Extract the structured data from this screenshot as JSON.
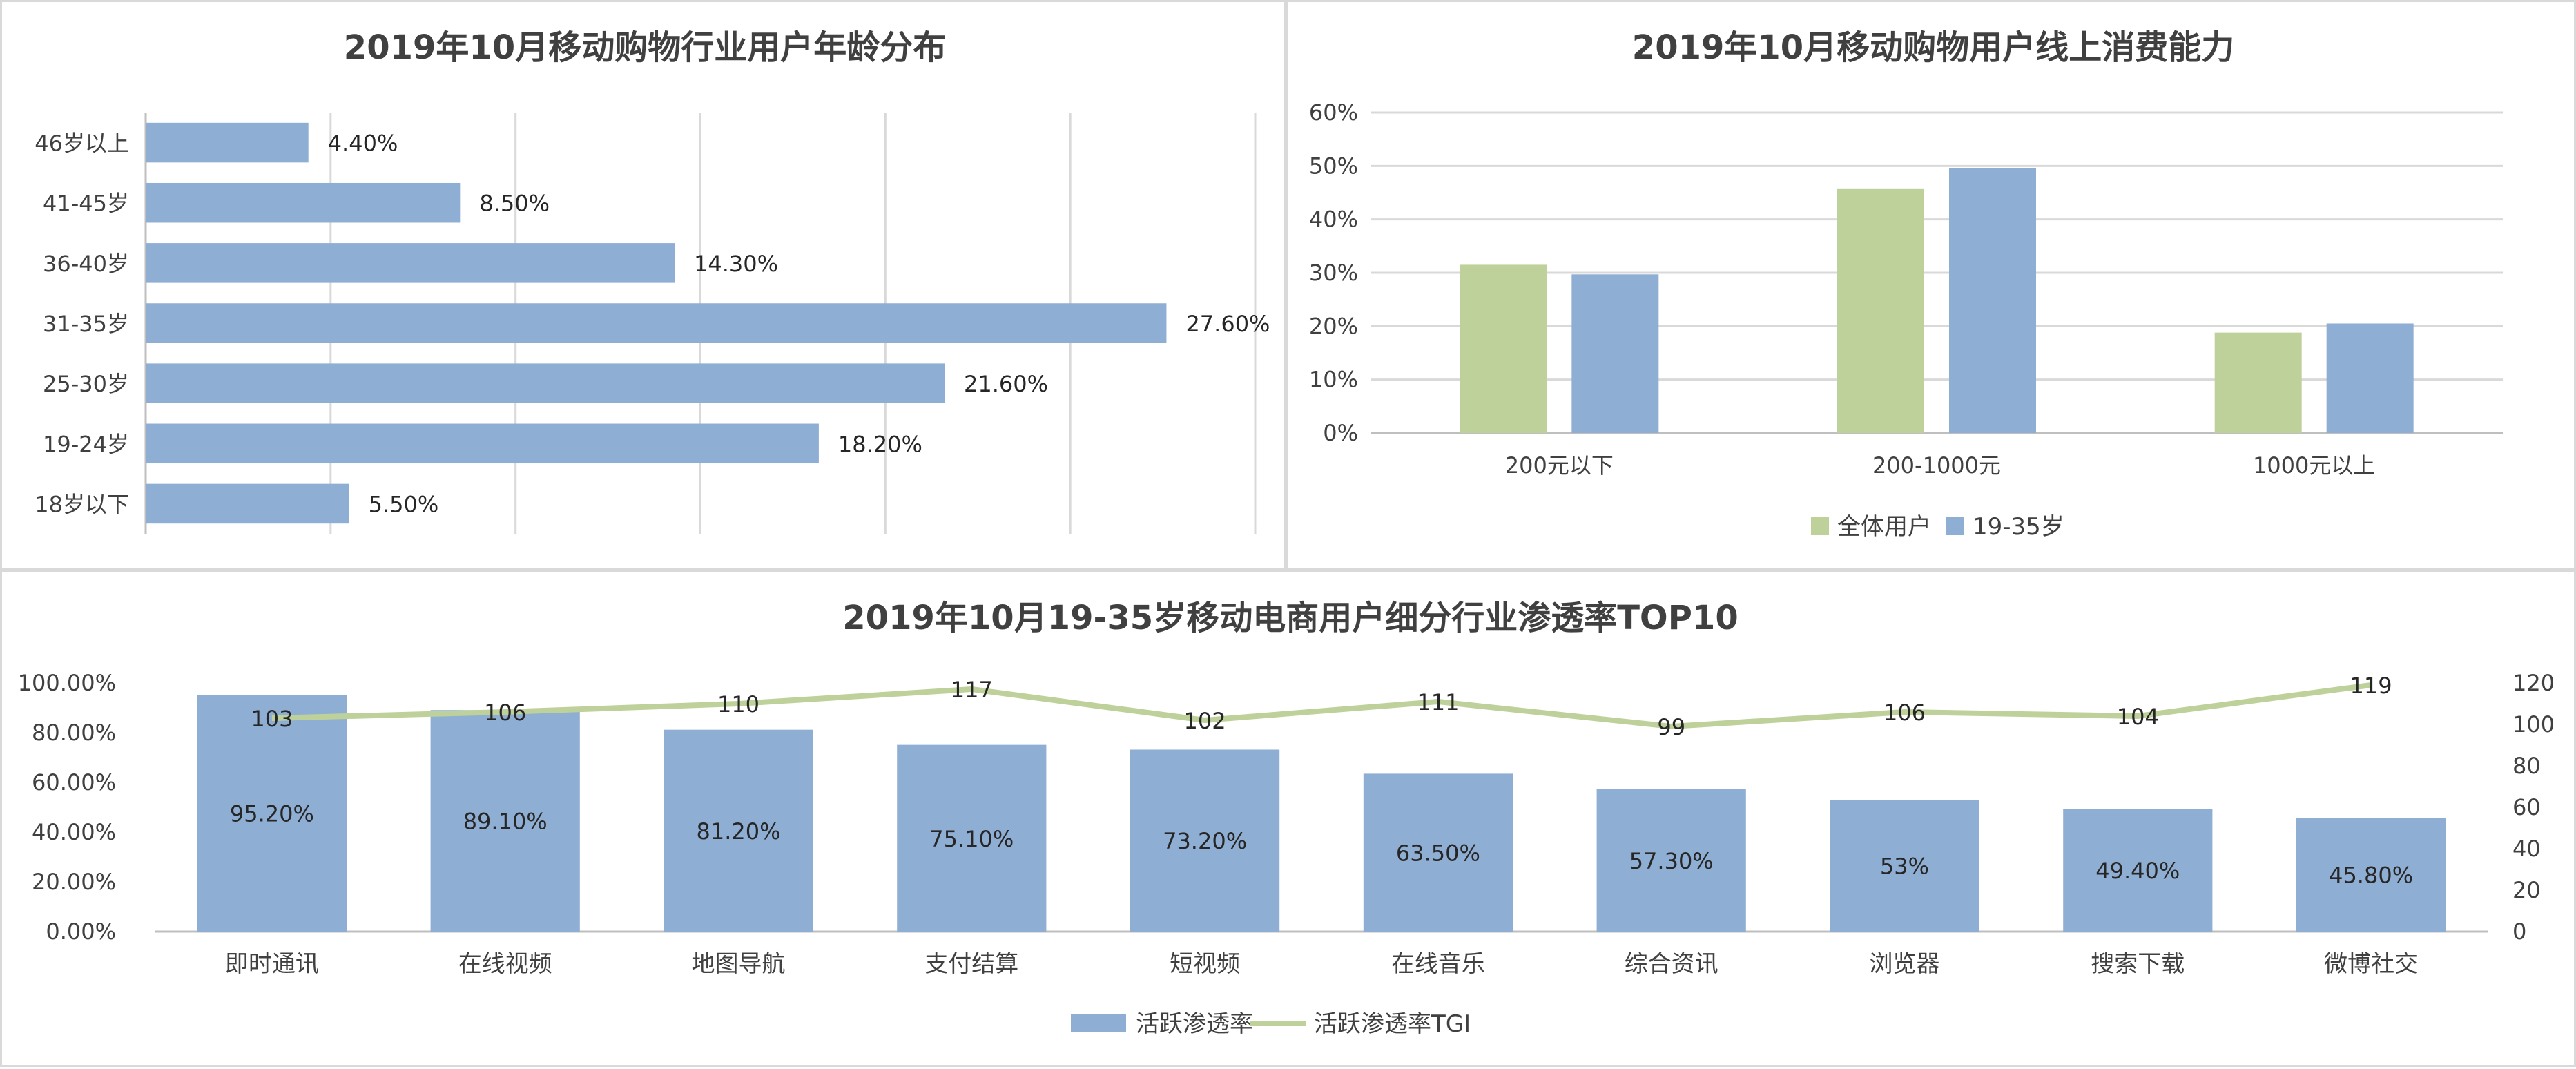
{
  "colors": {
    "blue": "#8faed3",
    "green": "#bfd19a",
    "grid": "#d9d9d9",
    "axis": "#bfbfbf",
    "text": "#404040"
  },
  "chart_data": [
    {
      "id": "age",
      "type": "bar",
      "orientation": "horizontal",
      "title": "2019年10月移动购物行业用户年龄分布",
      "categories": [
        "46岁以上",
        "41-45岁",
        "36-40岁",
        "31-35岁",
        "25-30岁",
        "19-24岁",
        "18岁以下"
      ],
      "values": [
        4.4,
        8.5,
        14.3,
        27.6,
        21.6,
        18.2,
        5.5
      ],
      "data_labels": [
        "4.40%",
        "8.50%",
        "14.30%",
        "27.60%",
        "21.60%",
        "18.20%",
        "5.50%"
      ],
      "xlim": [
        0,
        30
      ],
      "grid": "vertical",
      "legend": "none"
    },
    {
      "id": "spend",
      "type": "bar",
      "title": "2019年10月移动购物用户线上消费能力",
      "categories": [
        "200元以下",
        "200-1000元",
        "1000元以上"
      ],
      "series": [
        {
          "name": "全体用户",
          "color": "#bfd19a",
          "values": [
            31.5,
            45.8,
            18.8
          ]
        },
        {
          "name": "19-35岁",
          "color": "#8faed3",
          "values": [
            29.7,
            49.6,
            20.5
          ]
        }
      ],
      "ylim": [
        0,
        60
      ],
      "yticks": [
        "0%",
        "10%",
        "20%",
        "30%",
        "40%",
        "50%",
        "60%"
      ],
      "grid": "horizontal",
      "legend": "bottom"
    },
    {
      "id": "pen",
      "type": "bar",
      "title": "2019年10月19-35岁移动电商用户细分行业渗透率TOP10",
      "categories": [
        "即时通讯",
        "在线视频",
        "地图导航",
        "支付结算",
        "短视频",
        "在线音乐",
        "综合资讯",
        "浏览器",
        "搜索下载",
        "微博社交"
      ],
      "series": [
        {
          "name": "活跃渗透率",
          "type": "bar",
          "color": "#8faed3",
          "axis": "left",
          "values": [
            95.2,
            89.1,
            81.2,
            75.1,
            73.2,
            63.5,
            57.3,
            53,
            49.4,
            45.8
          ],
          "data_labels": [
            "95.20%",
            "89.10%",
            "81.20%",
            "75.10%",
            "73.20%",
            "63.50%",
            "57.30%",
            "53%",
            "49.40%",
            "45.80%"
          ]
        },
        {
          "name": "活跃渗透率TGI",
          "type": "line",
          "color": "#bfd19a",
          "axis": "right",
          "values": [
            103,
            106,
            110,
            117,
            102,
            111,
            99,
            106,
            104,
            119
          ],
          "data_labels": [
            "103",
            "106",
            "110",
            "117",
            "102",
            "111",
            "99",
            "106",
            "104",
            "119"
          ]
        }
      ],
      "ylim": [
        0,
        100
      ],
      "yticks": [
        "0.00%",
        "20.00%",
        "40.00%",
        "60.00%",
        "80.00%",
        "100.00%"
      ],
      "y2lim": [
        0,
        120
      ],
      "y2ticks": [
        "0",
        "20",
        "40",
        "60",
        "80",
        "100",
        "120"
      ],
      "grid": "none",
      "legend": "bottom"
    }
  ]
}
